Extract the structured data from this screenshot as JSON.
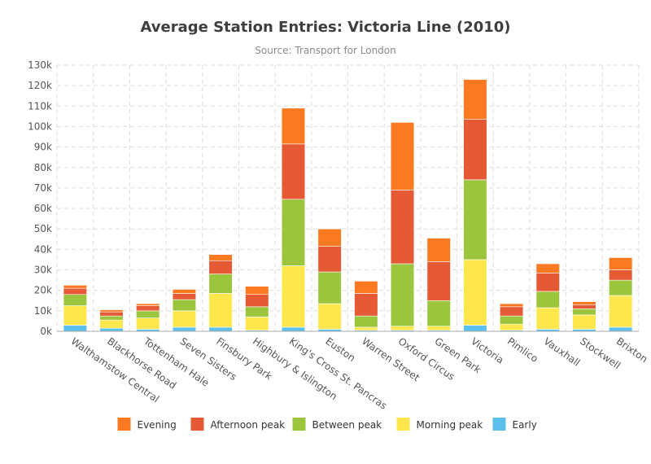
{
  "chart_data": {
    "type": "bar",
    "stacked": true,
    "title": "Average Station Entries: Victoria Line (2010)",
    "subtitle": "Source: Transport for London",
    "xlabel": "",
    "ylabel": "",
    "ylim": [
      0,
      130000
    ],
    "yticks": [
      0,
      10000,
      20000,
      30000,
      40000,
      50000,
      60000,
      70000,
      80000,
      90000,
      100000,
      110000,
      120000,
      130000
    ],
    "ytick_labels": [
      "0k",
      "10k",
      "20k",
      "30k",
      "40k",
      "50k",
      "60k",
      "70k",
      "80k",
      "90k",
      "100k",
      "110k",
      "120k",
      "130k"
    ],
    "grid": true,
    "legend_position": "bottom",
    "categories": [
      "Walthamstow Central",
      "Blackhorse Road",
      "Tottenham Hale",
      "Seven Sisters",
      "Finsbury Park",
      "Highbury & Islington",
      "King's Cross St. Pancras",
      "Euston",
      "Warren Street",
      "Oxford Circus",
      "Green Park",
      "Victoria",
      "Pimlico",
      "Vauxhall",
      "Stockwell",
      "Brixton"
    ],
    "series": [
      {
        "name": "Early",
        "color": "#5bc0eb",
        "values": [
          3000,
          1500,
          1000,
          2000,
          2000,
          500,
          2000,
          1000,
          500,
          500,
          500,
          3000,
          500,
          1000,
          1000,
          2000
        ]
      },
      {
        "name": "Morning peak",
        "color": "#fde74c",
        "values": [
          9500,
          4000,
          5500,
          8000,
          16500,
          6500,
          30000,
          12500,
          1500,
          2000,
          2000,
          32000,
          3000,
          10500,
          7000,
          15500
        ]
      },
      {
        "name": "Between peak",
        "color": "#9bc53d",
        "values": [
          5500,
          2000,
          3500,
          5500,
          9500,
          5000,
          32500,
          15500,
          5500,
          30500,
          12500,
          39000,
          4000,
          8000,
          3000,
          7500
        ]
      },
      {
        "name": "Afternoon peak",
        "color": "#e55934",
        "values": [
          3000,
          2000,
          2500,
          3000,
          6500,
          6000,
          27000,
          12500,
          11000,
          36000,
          19000,
          29500,
          4500,
          9000,
          2000,
          5000
        ]
      },
      {
        "name": "Evening",
        "color": "#fa7921",
        "values": [
          1500,
          1000,
          1000,
          2000,
          3000,
          4000,
          17500,
          8500,
          6000,
          33000,
          11500,
          19500,
          1500,
          4500,
          1500,
          6000
        ]
      }
    ],
    "legend_order": [
      "Evening",
      "Afternoon peak",
      "Between peak",
      "Morning peak",
      "Early"
    ]
  }
}
